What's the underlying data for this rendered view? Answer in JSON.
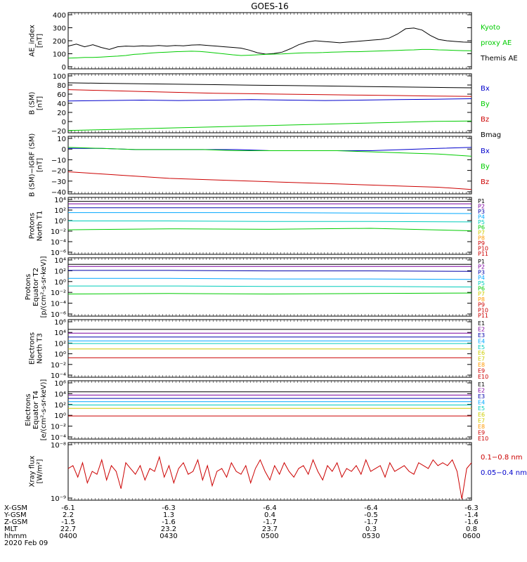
{
  "title": "GOES-16",
  "colors": {
    "black": "#000000",
    "green": "#00cc00",
    "blue": "#0000cc",
    "red": "#cc0000",
    "purple": "#7b00a0",
    "navy": "#0000aa",
    "cyan": "#00a8ff",
    "teal": "#00ccbb",
    "yellow": "#cccc00",
    "orange": "#ff9900",
    "dkred": "#cc0000"
  },
  "chart_data": [
    {
      "type": "line",
      "ylabel": [
        "AE_index",
        "[nT]"
      ],
      "yticks": [
        "400",
        "300",
        "200",
        "100",
        "0"
      ],
      "ylim": [
        0,
        420
      ],
      "legend": [
        {
          "text": "Kyoto",
          "color": "green"
        },
        {
          "text": "proxy AE",
          "color": "green"
        },
        {
          "text": "Themis AE",
          "color": "black"
        }
      ],
      "series": [
        {
          "color": "black",
          "values": [
            170,
            185,
            165,
            180,
            160,
            145,
            165,
            170,
            168,
            172,
            170,
            175,
            170,
            175,
            172,
            178,
            180,
            175,
            170,
            165,
            160,
            155,
            140,
            120,
            110,
            115,
            125,
            150,
            180,
            200,
            210,
            205,
            200,
            195,
            200,
            205,
            210,
            215,
            220,
            230,
            260,
            300,
            305,
            290,
            250,
            220,
            210,
            205,
            200,
            198
          ]
        },
        {
          "color": "green",
          "values": [
            80,
            82,
            85,
            85,
            88,
            92,
            95,
            100,
            108,
            112,
            118,
            122,
            125,
            128,
            130,
            132,
            130,
            125,
            118,
            112,
            105,
            100,
            102,
            105,
            108,
            110,
            112,
            115,
            118,
            120,
            120,
            122,
            125,
            126,
            128,
            128,
            130,
            132,
            134,
            136,
            138,
            140,
            142,
            145,
            145,
            142,
            140,
            138,
            136,
            135
          ]
        }
      ]
    },
    {
      "type": "line",
      "ylabel": [
        "B (SM)",
        "[nT]"
      ],
      "yticks": [
        "100",
        "80",
        "60",
        "40",
        "20",
        "0",
        "−20"
      ],
      "ylim": [
        -25,
        105
      ],
      "legend": [
        {
          "text": "Bx",
          "color": "blue"
        },
        {
          "text": "By",
          "color": "green"
        },
        {
          "text": "Bz",
          "color": "red"
        },
        {
          "text": "Bmag",
          "color": "black"
        }
      ],
      "series": [
        {
          "color": "black",
          "values": [
            85,
            84,
            83,
            82,
            81,
            80,
            79,
            78,
            77,
            76,
            75,
            74
          ]
        },
        {
          "color": "red",
          "values": [
            70,
            68,
            66,
            64,
            62,
            61,
            60,
            59,
            58,
            57,
            56,
            55
          ]
        },
        {
          "color": "blue",
          "values": [
            45,
            46,
            47,
            46,
            47,
            48,
            47,
            46,
            47,
            48,
            49,
            50
          ]
        },
        {
          "color": "green",
          "values": [
            -20,
            -18,
            -16,
            -14,
            -12,
            -10,
            -8,
            -6,
            -4,
            -2,
            0,
            1
          ]
        }
      ]
    },
    {
      "type": "line",
      "ylabel": [
        "B (SM)−IGRF (SM)",
        "[nT]"
      ],
      "yticks": [
        "10",
        "0",
        "−10",
        "−20",
        "−30",
        "−40"
      ],
      "ylim": [
        -42,
        10
      ],
      "legend": [
        {
          "text": "Bx",
          "color": "blue"
        },
        {
          "text": "By",
          "color": "green"
        },
        {
          "text": "Bz",
          "color": "red"
        }
      ],
      "series": [
        {
          "color": "blue",
          "values": [
            -1,
            -1,
            -2,
            -2,
            -2,
            -2,
            -3,
            -3,
            -3,
            -3,
            -2,
            -1,
            0
          ]
        },
        {
          "color": "green",
          "values": [
            0,
            -1,
            -2,
            -2,
            -2,
            -3,
            -3,
            -3,
            -3,
            -4,
            -5,
            -6,
            -8
          ]
        },
        {
          "color": "red",
          "values": [
            -22,
            -24,
            -26,
            -28,
            -29,
            -30,
            -31,
            -32,
            -33,
            -34,
            -35,
            -36,
            -38
          ]
        }
      ]
    },
    {
      "type": "line",
      "ylabel": [
        "Protons",
        "North T1"
      ],
      "yticks": [
        "10⁴",
        "10²",
        "10⁰",
        "10⁻²",
        "10⁻⁴",
        "10⁻⁶"
      ],
      "ylim": [
        -7,
        4.6
      ],
      "legend": [
        {
          "text": "P1",
          "color": "black"
        },
        {
          "text": "P2",
          "color": "purple"
        },
        {
          "text": "P3",
          "color": "navy"
        },
        {
          "text": "P4",
          "color": "cyan"
        },
        {
          "text": "P5",
          "color": "teal"
        },
        {
          "text": "P6",
          "color": "green"
        },
        {
          "text": "P7",
          "color": "yellow"
        },
        {
          "text": "P8",
          "color": "orange"
        },
        {
          "text": "P9",
          "color": "red"
        },
        {
          "text": "P10",
          "color": "dkred"
        },
        {
          "text": "P11",
          "color": "dkred"
        }
      ],
      "series": [
        {
          "color": "black",
          "values": [
            3.8,
            3.8,
            3.8,
            3.8,
            3.8
          ]
        },
        {
          "color": "purple",
          "values": [
            3.3,
            3.3,
            3.3,
            3.3,
            3.3
          ]
        },
        {
          "color": "navy",
          "values": [
            2.5,
            2.5,
            2.5,
            2.5,
            2.5
          ]
        },
        {
          "color": "cyan",
          "values": [
            1.5,
            1.5,
            1.5,
            1.4,
            1.3
          ]
        },
        {
          "color": "teal",
          "values": [
            -0.2,
            -0.2,
            -0.3,
            -0.3,
            -0.4
          ]
        },
        {
          "color": "green",
          "values": [
            -2.0,
            -1.8,
            -1.9,
            -1.7,
            -2.2
          ]
        }
      ]
    },
    {
      "type": "line",
      "ylabel": [
        "Protons",
        "Equator T2",
        "[p/(cm²-s-sr-keV)]"
      ],
      "yticks": [
        "10⁴",
        "10²",
        "10⁰",
        "10⁻²",
        "10⁻⁴",
        "10⁻⁶"
      ],
      "ylim": [
        -7,
        4.6
      ],
      "legend": [
        {
          "text": "P1",
          "color": "black"
        },
        {
          "text": "P2",
          "color": "purple"
        },
        {
          "text": "P3",
          "color": "navy"
        },
        {
          "text": "P4",
          "color": "cyan"
        },
        {
          "text": "P5",
          "color": "teal"
        },
        {
          "text": "P6",
          "color": "green"
        },
        {
          "text": "P7",
          "color": "yellow"
        },
        {
          "text": "P8",
          "color": "orange"
        },
        {
          "text": "P9",
          "color": "red"
        },
        {
          "text": "P10",
          "color": "dkred"
        },
        {
          "text": "P11",
          "color": "dkred"
        }
      ],
      "series": [
        {
          "color": "black",
          "values": [
            3.3,
            3.3,
            3.3,
            3.3,
            3.3
          ]
        },
        {
          "color": "purple",
          "values": [
            2.9,
            2.9,
            2.9,
            2.9,
            2.9
          ]
        },
        {
          "color": "navy",
          "values": [
            2.1,
            2.1,
            2.0,
            2.0,
            1.9
          ]
        },
        {
          "color": "cyan",
          "values": [
            0.5,
            0.5,
            0.4,
            0.4,
            0.3
          ]
        },
        {
          "color": "teal",
          "values": [
            -1.0,
            -1.0,
            -1.1,
            -1.1,
            -1.2
          ]
        },
        {
          "color": "green",
          "values": [
            -2.6,
            -2.5,
            -2.6,
            -2.5,
            -2.4
          ]
        }
      ]
    },
    {
      "type": "line",
      "ylabel": [
        "Electrons",
        "North T3"
      ],
      "yticks": [
        "10⁶",
        "10⁴",
        "10²",
        "10⁰",
        "10⁻²",
        "10⁻⁴"
      ],
      "ylim": [
        -4.4,
        6.2
      ],
      "legend": [
        {
          "text": "E1",
          "color": "black"
        },
        {
          "text": "E2",
          "color": "purple"
        },
        {
          "text": "E3",
          "color": "navy"
        },
        {
          "text": "E4",
          "color": "cyan"
        },
        {
          "text": "E5",
          "color": "teal"
        },
        {
          "text": "E6",
          "color": "yellow"
        },
        {
          "text": "E7",
          "color": "yellow"
        },
        {
          "text": "E8",
          "color": "orange"
        },
        {
          "text": "E9",
          "color": "red"
        },
        {
          "text": "E10",
          "color": "dkred"
        }
      ],
      "series": [
        {
          "color": "black",
          "values": [
            4.4,
            4.4,
            4.4,
            4.4,
            4.4
          ]
        },
        {
          "color": "purple",
          "values": [
            3.7,
            3.7,
            3.7,
            3.7,
            3.7
          ]
        },
        {
          "color": "navy",
          "values": [
            3.0,
            3.0,
            3.0,
            3.0,
            3.0
          ]
        },
        {
          "color": "cyan",
          "values": [
            2.3,
            2.3,
            2.3,
            2.3,
            2.3
          ]
        },
        {
          "color": "teal",
          "values": [
            1.8,
            1.8,
            1.8,
            1.8,
            1.8
          ]
        },
        {
          "color": "yellow",
          "values": [
            0.8,
            0.8,
            0.8,
            0.8,
            0.8
          ]
        },
        {
          "color": "red",
          "values": [
            -0.8,
            -0.8,
            -0.8,
            -0.8,
            -0.8
          ]
        }
      ]
    },
    {
      "type": "line",
      "ylabel": [
        "Electrons",
        "Equator T4",
        "[e/(cm²-s-sr-keV)]"
      ],
      "yticks": [
        "10⁶",
        "10⁴",
        "10²",
        "10⁰",
        "10⁻²",
        "10⁻⁴"
      ],
      "ylim": [
        -4.4,
        6.2
      ],
      "legend": [
        {
          "text": "E1",
          "color": "black"
        },
        {
          "text": "E2",
          "color": "purple"
        },
        {
          "text": "E3",
          "color": "navy"
        },
        {
          "text": "E4",
          "color": "cyan"
        },
        {
          "text": "E5",
          "color": "teal"
        },
        {
          "text": "E6",
          "color": "yellow"
        },
        {
          "text": "E7",
          "color": "yellow"
        },
        {
          "text": "E8",
          "color": "orange"
        },
        {
          "text": "E9",
          "color": "red"
        },
        {
          "text": "E10",
          "color": "dkred"
        }
      ],
      "series": [
        {
          "color": "black",
          "values": [
            4.2,
            4.2,
            4.2,
            4.2,
            4.2
          ]
        },
        {
          "color": "purple",
          "values": [
            3.6,
            3.6,
            3.6,
            3.6,
            3.6
          ]
        },
        {
          "color": "navy",
          "values": [
            3.0,
            3.0,
            3.0,
            3.0,
            3.0
          ]
        },
        {
          "color": "cyan",
          "values": [
            2.4,
            2.4,
            2.4,
            2.4,
            2.4
          ]
        },
        {
          "color": "teal",
          "values": [
            1.8,
            1.8,
            1.8,
            1.8,
            1.8
          ]
        },
        {
          "color": "yellow",
          "values": [
            1.2,
            1.2,
            1.2,
            1.2,
            1.2
          ]
        },
        {
          "color": "red",
          "values": [
            -0.2,
            -0.2,
            -0.2,
            -0.2,
            -0.2
          ]
        }
      ]
    },
    {
      "type": "line",
      "ylabel": [
        "Xray flux",
        "[W/m²]"
      ],
      "yticks": [
        "10⁻⁸",
        "10⁻⁹"
      ],
      "ylim": [
        0,
        1
      ],
      "legend": [
        {
          "text": "0.1−0.8 nm",
          "color": "red"
        },
        {
          "text": "0.05−0.4 nm",
          "color": "blue"
        }
      ],
      "series": [
        {
          "color": "red",
          "values": [
            0.55,
            0.6,
            0.4,
            0.65,
            0.3,
            0.5,
            0.45,
            0.7,
            0.35,
            0.6,
            0.5,
            0.2,
            0.65,
            0.55,
            0.45,
            0.6,
            0.35,
            0.55,
            0.5,
            0.75,
            0.4,
            0.6,
            0.3,
            0.55,
            0.65,
            0.45,
            0.5,
            0.7,
            0.35,
            0.6,
            0.25,
            0.5,
            0.55,
            0.4,
            0.65,
            0.5,
            0.45,
            0.6,
            0.3,
            0.55,
            0.7,
            0.5,
            0.35,
            0.6,
            0.45,
            0.65,
            0.5,
            0.4,
            0.55,
            0.6,
            0.45,
            0.7,
            0.5,
            0.35,
            0.6,
            0.5,
            0.65,
            0.4,
            0.55,
            0.5,
            0.6,
            0.45,
            0.7,
            0.5,
            0.55,
            0.6,
            0.4,
            0.65,
            0.5,
            0.55,
            0.6,
            0.5,
            0.45,
            0.65,
            0.6,
            0.55,
            0.7,
            0.6,
            0.65,
            0.6,
            0.7,
            0.5,
            0.02,
            0.55,
            0.65
          ]
        }
      ]
    }
  ],
  "footer": {
    "rows": [
      {
        "label": "X-GSM",
        "values": [
          "-6.1",
          "-6.3",
          "-6.4",
          "-6.4",
          "-6.3"
        ]
      },
      {
        "label": "Y-GSM",
        "values": [
          "2.2",
          "1.3",
          "0.4",
          "-0.5",
          "-1.4"
        ]
      },
      {
        "label": "Z-GSM",
        "values": [
          "-1.5",
          "-1.6",
          "-1.7",
          "-1.7",
          "-1.6"
        ]
      },
      {
        "label": "MLT",
        "values": [
          "22.7",
          "23.2",
          "23.7",
          "0.3",
          "0.8"
        ]
      },
      {
        "label": "hhmm",
        "values": [
          "0400",
          "0430",
          "0500",
          "0530",
          "0600"
        ]
      }
    ],
    "date": "2020 Feb 09"
  }
}
